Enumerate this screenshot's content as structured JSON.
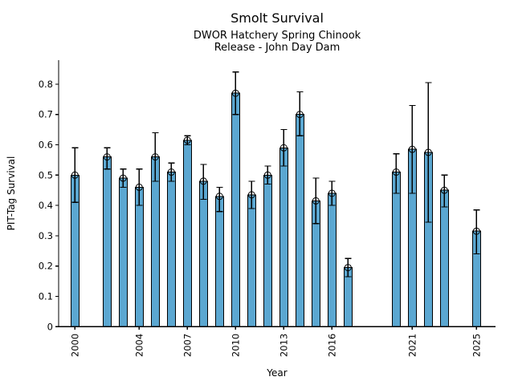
{
  "figure": {
    "title": "Smolt Survival",
    "subtitle_line1": "DWOR Hatchery Spring Chinook",
    "subtitle_line2": "Release - John Day Dam"
  },
  "chart_data": {
    "type": "bar",
    "title": "Smolt Survival",
    "subtitle": [
      "DWOR Hatchery Spring Chinook",
      "Release - John Day Dam"
    ],
    "xlabel": "Year",
    "ylabel": "PIT-Tag Survival",
    "legend": "none",
    "grid": false,
    "ylim": [
      0,
      0.88
    ],
    "xlim": [
      1999,
      2026.4
    ],
    "yticks": [
      0,
      0.1,
      0.2,
      0.3,
      0.4,
      0.5,
      0.6,
      0.7,
      0.8
    ],
    "ytick_labels": [
      "0",
      "0.1",
      "0.2",
      "0.3",
      "0.4",
      "0.5",
      "0.6",
      "0.7",
      "0.8"
    ],
    "xticks": [
      2000,
      2004,
      2007,
      2010,
      2013,
      2016,
      2021,
      2025
    ],
    "xtick_labels": [
      "2000",
      "2004",
      "2007",
      "2010",
      "2013",
      "2016",
      "2021",
      "2025"
    ],
    "bar_color": "#5ba7d1",
    "bar_edge_color": "#000000",
    "error_color": "#000000",
    "marker": "open-circle",
    "series": [
      {
        "name": "PIT-Tag Survival",
        "points": [
          {
            "year": 2000,
            "value": 0.5,
            "ci_low": 0.41,
            "ci_high": 0.59
          },
          {
            "year": 2002,
            "value": 0.56,
            "ci_low": 0.52,
            "ci_high": 0.59
          },
          {
            "year": 2003,
            "value": 0.49,
            "ci_low": 0.46,
            "ci_high": 0.52
          },
          {
            "year": 2004,
            "value": 0.46,
            "ci_low": 0.4,
            "ci_high": 0.52
          },
          {
            "year": 2005,
            "value": 0.56,
            "ci_low": 0.48,
            "ci_high": 0.64
          },
          {
            "year": 2006,
            "value": 0.51,
            "ci_low": 0.48,
            "ci_high": 0.54
          },
          {
            "year": 2007,
            "value": 0.615,
            "ci_low": 0.6,
            "ci_high": 0.63
          },
          {
            "year": 2008,
            "value": 0.48,
            "ci_low": 0.42,
            "ci_high": 0.535
          },
          {
            "year": 2009,
            "value": 0.43,
            "ci_low": 0.38,
            "ci_high": 0.46
          },
          {
            "year": 2010,
            "value": 0.77,
            "ci_low": 0.7,
            "ci_high": 0.84
          },
          {
            "year": 2011,
            "value": 0.435,
            "ci_low": 0.39,
            "ci_high": 0.48
          },
          {
            "year": 2012,
            "value": 0.5,
            "ci_low": 0.47,
            "ci_high": 0.53
          },
          {
            "year": 2013,
            "value": 0.59,
            "ci_low": 0.53,
            "ci_high": 0.65
          },
          {
            "year": 2014,
            "value": 0.7,
            "ci_low": 0.63,
            "ci_high": 0.775
          },
          {
            "year": 2015,
            "value": 0.415,
            "ci_low": 0.34,
            "ci_high": 0.49
          },
          {
            "year": 2016,
            "value": 0.44,
            "ci_low": 0.4,
            "ci_high": 0.48
          },
          {
            "year": 2017,
            "value": 0.195,
            "ci_low": 0.165,
            "ci_high": 0.225
          },
          {
            "year": 2020,
            "value": 0.51,
            "ci_low": 0.44,
            "ci_high": 0.57
          },
          {
            "year": 2021,
            "value": 0.585,
            "ci_low": 0.44,
            "ci_high": 0.73
          },
          {
            "year": 2022,
            "value": 0.575,
            "ci_low": 0.345,
            "ci_high": 0.805
          },
          {
            "year": 2023,
            "value": 0.45,
            "ci_low": 0.395,
            "ci_high": 0.5
          },
          {
            "year": 2025,
            "value": 0.315,
            "ci_low": 0.24,
            "ci_high": 0.385
          }
        ]
      }
    ]
  }
}
